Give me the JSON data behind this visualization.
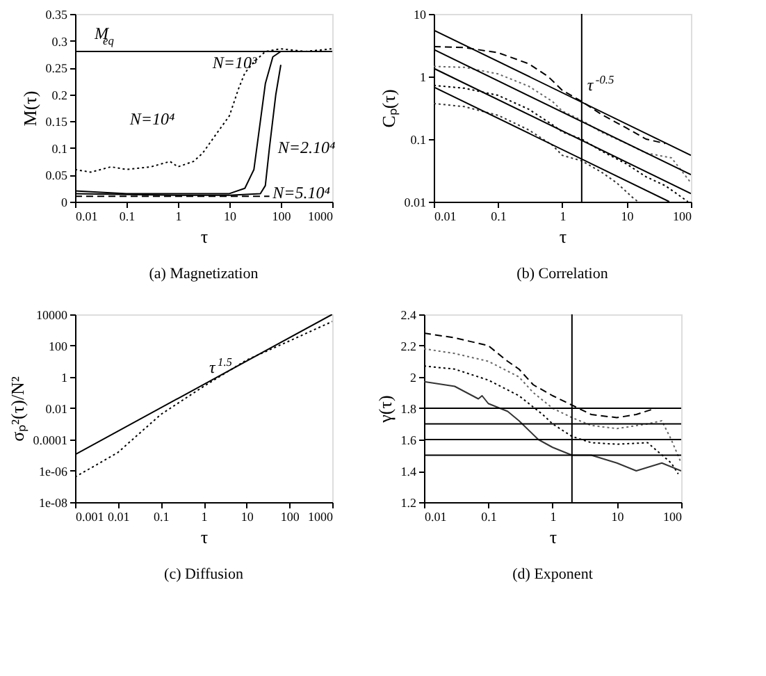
{
  "chart_data": [
    {
      "type": "line",
      "title": "(a) Magnetization",
      "xlabel": "τ",
      "ylabel": "M(τ)",
      "log": "x",
      "xlim": [
        0.01,
        1000
      ],
      "xticks": [
        0.01,
        0.1,
        1,
        10,
        100,
        1000
      ],
      "ylim": [
        0,
        0.35
      ],
      "yticks": [
        0,
        0.05,
        0.1,
        0.15,
        0.2,
        0.25,
        0.3,
        0.35
      ],
      "grid": false,
      "series": [
        {
          "color": "#000000",
          "line_style": "dotted",
          "x": [
            0.01,
            0.02,
            0.05,
            0.1,
            0.3,
            0.7,
            1,
            2,
            3,
            5,
            10,
            15,
            20,
            30,
            50,
            100,
            300,
            1000
          ],
          "values": [
            0.06,
            0.055,
            0.065,
            0.06,
            0.065,
            0.075,
            0.065,
            0.075,
            0.09,
            0.12,
            0.16,
            0.21,
            0.24,
            0.26,
            0.28,
            0.285,
            0.28,
            0.285
          ]
        },
        {
          "color": "#000000",
          "line_style": "solid",
          "x": [
            0.01,
            0.1,
            1,
            10,
            20,
            30,
            40,
            50,
            70,
            100,
            1000
          ],
          "values": [
            0.02,
            0.015,
            0.015,
            0.015,
            0.025,
            0.06,
            0.15,
            0.22,
            0.27,
            0.28,
            0.28
          ]
        },
        {
          "color": "#000000",
          "line_style": "solid",
          "x": [
            0.01,
            1,
            10,
            40,
            50,
            60,
            80,
            100
          ],
          "values": [
            0.015,
            0.012,
            0.012,
            0.015,
            0.03,
            0.1,
            0.2,
            0.255
          ]
        },
        {
          "color": "#000000",
          "line_style": "dashed",
          "x": [
            0.01,
            1,
            10,
            60
          ],
          "values": [
            0.01,
            0.01,
            0.01,
            0.01
          ]
        }
      ],
      "ref_lines": [
        {
          "axis": "y",
          "value": 0.28,
          "label": "M$_{eq}$",
          "color": "#000000"
        }
      ],
      "annotations": [
        "N=10³",
        "N=10⁴",
        "N=2.10⁴",
        "N=5.10⁴"
      ]
    },
    {
      "type": "line",
      "title": "(b) Correlation",
      "xlabel": "τ",
      "ylabel": "Cₚ(τ)",
      "log": "xy",
      "xlim": [
        0.01,
        100
      ],
      "xticks": [
        0.01,
        0.1,
        1,
        10,
        100
      ],
      "ylim": [
        0.01,
        10
      ],
      "yticks": [
        0.01,
        0.1,
        1,
        10
      ],
      "grid": false,
      "series": [
        {
          "color": "#000000",
          "line_style": "dashed",
          "x": [
            0.01,
            0.03,
            0.1,
            0.3,
            0.6,
            1,
            2,
            4,
            10,
            20,
            40
          ],
          "values": [
            3.0,
            2.9,
            2.4,
            1.6,
            1.0,
            0.6,
            0.4,
            0.25,
            0.15,
            0.1,
            0.085
          ]
        },
        {
          "color": "#666666",
          "line_style": "dotted",
          "x": [
            0.01,
            0.03,
            0.1,
            0.3,
            0.7,
            1,
            2,
            4,
            10,
            20,
            50,
            100
          ],
          "values": [
            1.45,
            1.4,
            1.1,
            0.7,
            0.4,
            0.28,
            0.2,
            0.13,
            0.085,
            0.06,
            0.05,
            0.02
          ]
        },
        {
          "color": "#000000",
          "line_style": "dotted",
          "x": [
            0.01,
            0.03,
            0.1,
            0.3,
            0.7,
            1,
            2,
            4,
            10,
            20,
            40,
            90
          ],
          "values": [
            0.72,
            0.65,
            0.5,
            0.3,
            0.17,
            0.13,
            0.1,
            0.065,
            0.04,
            0.025,
            0.018,
            0.01
          ]
        },
        {
          "color": "#333333",
          "line_style": "dotted",
          "x": [
            0.01,
            0.03,
            0.1,
            0.3,
            0.7,
            1,
            2,
            4,
            7,
            12,
            15
          ],
          "values": [
            0.37,
            0.33,
            0.24,
            0.14,
            0.08,
            0.055,
            0.045,
            0.03,
            0.02,
            0.012,
            0.01
          ]
        },
        {
          "color": "#000000",
          "line_style": "solid",
          "x": [
            0.01,
            100
          ],
          "values": [
            5.5,
            0.055
          ]
        },
        {
          "color": "#000000",
          "line_style": "solid",
          "x": [
            0.01,
            100
          ],
          "values": [
            2.7,
            0.027
          ]
        },
        {
          "color": "#000000",
          "line_style": "solid",
          "x": [
            0.01,
            100
          ],
          "values": [
            1.35,
            0.0135
          ]
        },
        {
          "color": "#000000",
          "line_style": "solid",
          "x": [
            0.01,
            46
          ],
          "values": [
            0.68,
            0.01
          ]
        }
      ],
      "ref_lines": [
        {
          "axis": "x",
          "value": 2,
          "color": "#000000"
        }
      ],
      "annotations": [
        {
          "text": "τ$^{-0.5}$",
          "x": 2,
          "y": 0.4
        }
      ]
    },
    {
      "type": "line",
      "title": "(c) Diffusion",
      "xlabel": "τ",
      "ylabel": "σₚ²(τ)/N²",
      "log": "xy",
      "xlim": [
        0.001,
        1000
      ],
      "xticks": [
        0.001,
        0.01,
        0.1,
        1,
        10,
        100,
        1000
      ],
      "ylim": [
        1e-08,
        10000
      ],
      "yticks": [
        {
          "value": 1e-08,
          "label": "1e-08"
        },
        {
          "value": 1e-06,
          "label": "1e-06"
        },
        0.0001,
        0.01,
        1,
        100,
        10000
      ],
      "grid": false,
      "series": [
        {
          "color": "#000000",
          "line_style": "solid",
          "x": [
            0.001,
            1000
          ],
          "values": [
            1.1e-05,
            10000
          ]
        },
        {
          "color": "#000000",
          "line_style": "dotted",
          "x": [
            0.001,
            0.01,
            0.1,
            1,
            10,
            100,
            1000
          ],
          "values": [
            4e-07,
            1.5e-05,
            0.004,
            0.25,
            12,
            200,
            3500
          ]
        }
      ],
      "annotations": [
        {
          "text": "τ$^{1.5}$",
          "x": 1,
          "y": 0.35
        }
      ]
    },
    {
      "type": "line",
      "title": "(d) Exponent",
      "xlabel": "τ",
      "ylabel": "γ(τ)",
      "log": "x",
      "xlim": [
        0.01,
        100
      ],
      "xticks": [
        0.01,
        0.1,
        1,
        10,
        100
      ],
      "ylim": [
        1.2,
        2.4
      ],
      "yticks": [
        1.2,
        1.4,
        1.6,
        1.8,
        2,
        2.2,
        2.4
      ],
      "grid": false,
      "series": [
        {
          "color": "#000000",
          "line_style": "dashed",
          "x": [
            0.01,
            0.03,
            0.1,
            0.2,
            0.3,
            0.5,
            1,
            2,
            4,
            10,
            20,
            40
          ],
          "values": [
            2.28,
            2.25,
            2.2,
            2.1,
            2.05,
            1.95,
            1.88,
            1.82,
            1.76,
            1.74,
            1.76,
            1.8
          ]
        },
        {
          "color": "#666666",
          "line_style": "dotted",
          "x": [
            0.01,
            0.03,
            0.1,
            0.3,
            0.5,
            1,
            2,
            4,
            10,
            30,
            50,
            70,
            100
          ],
          "values": [
            2.18,
            2.15,
            2.1,
            2.0,
            1.9,
            1.8,
            1.74,
            1.69,
            1.67,
            1.7,
            1.72,
            1.6,
            1.45
          ]
        },
        {
          "color": "#000000",
          "line_style": "dotted",
          "x": [
            0.01,
            0.03,
            0.1,
            0.3,
            0.7,
            1,
            2,
            4,
            10,
            30,
            70,
            90
          ],
          "values": [
            2.07,
            2.05,
            1.98,
            1.88,
            1.76,
            1.7,
            1.62,
            1.58,
            1.57,
            1.58,
            1.45,
            1.38
          ]
        },
        {
          "color": "#333333",
          "line_style": "solid",
          "x": [
            0.01,
            0.03,
            0.07,
            0.08,
            0.1,
            0.2,
            0.3,
            0.6,
            1,
            2,
            4,
            10,
            20,
            50,
            100
          ],
          "values": [
            1.97,
            1.94,
            1.86,
            1.88,
            1.83,
            1.78,
            1.72,
            1.6,
            1.55,
            1.5,
            1.5,
            1.45,
            1.4,
            1.45,
            1.4
          ]
        }
      ],
      "ref_lines": [
        {
          "axis": "y",
          "value": 1.8,
          "color": "#000000"
        },
        {
          "axis": "y",
          "value": 1.7,
          "color": "#000000"
        },
        {
          "axis": "y",
          "value": 1.6,
          "color": "#000000"
        },
        {
          "axis": "y",
          "value": 1.5,
          "color": "#000000"
        },
        {
          "axis": "x",
          "value": 2,
          "color": "#000000"
        }
      ]
    }
  ]
}
